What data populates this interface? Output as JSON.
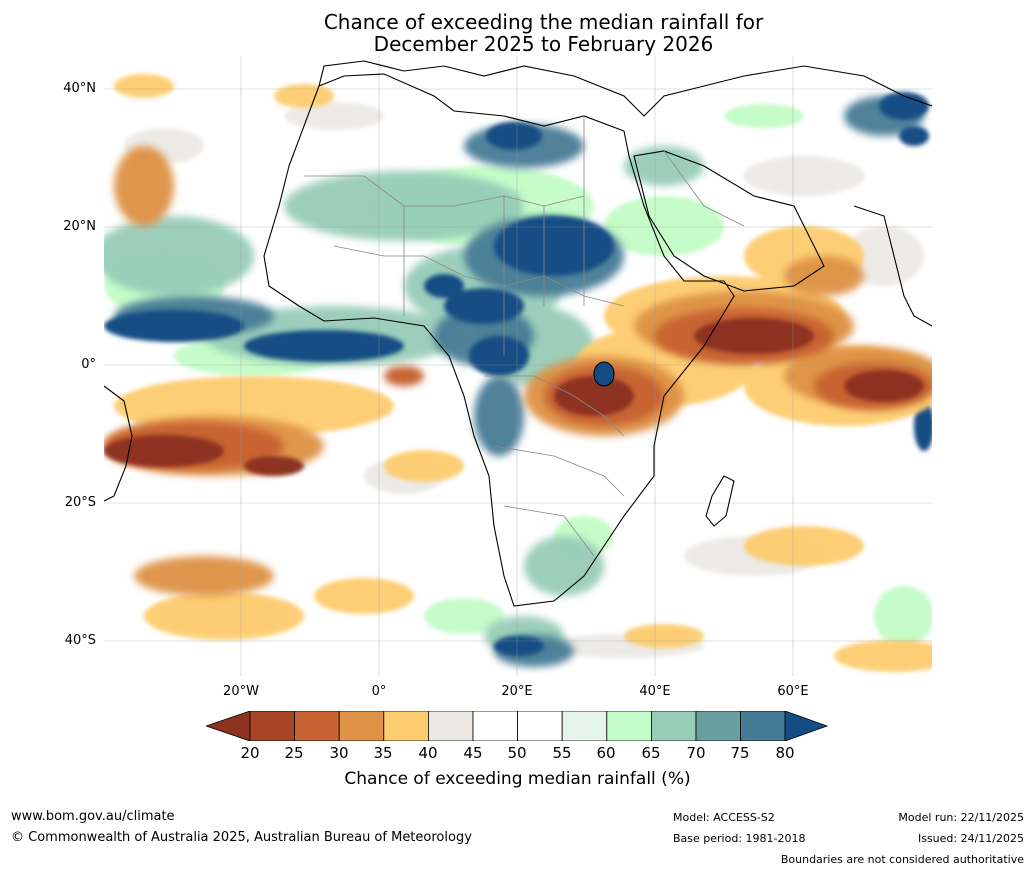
{
  "title": {
    "line1": "Chance of exceeding the median rainfall for",
    "line2": "December 2025 to February 2026"
  },
  "map": {
    "lat_labels": [
      "40°N",
      "20°N",
      "0°",
      "20°S",
      "40°S"
    ],
    "lon_labels": [
      "20°W",
      "0°",
      "20°E",
      "40°E",
      "60°E"
    ]
  },
  "colorbar": {
    "ticks": [
      "20",
      "25",
      "30",
      "35",
      "40",
      "45",
      "50",
      "55",
      "60",
      "65",
      "70",
      "75",
      "80"
    ],
    "colors": [
      "#8e3220",
      "#a84426",
      "#c86433",
      "#de9245",
      "#fdcc6e",
      "#ebe8e4",
      "#ffffff",
      "#ffffff",
      "#e6f5e9",
      "#c2fcc6",
      "#97ccb8",
      "#6a9fa1",
      "#467b95",
      "#134d84",
      "#134d84"
    ],
    "label": "Chance of exceeding median rainfall (%)"
  },
  "footer": {
    "url": "www.bom.gov.au/climate",
    "copyright": "© Commonwealth of Australia 2025, Australian Bureau of Meteorology",
    "model": "Model: ACCESS-S2",
    "base_period": "Base period: 1981-2018",
    "model_run": "Model run: 22/11/2025",
    "issued": "Issued: 24/11/2025",
    "disclaimer": "Boundaries are not considered authoritative"
  }
}
